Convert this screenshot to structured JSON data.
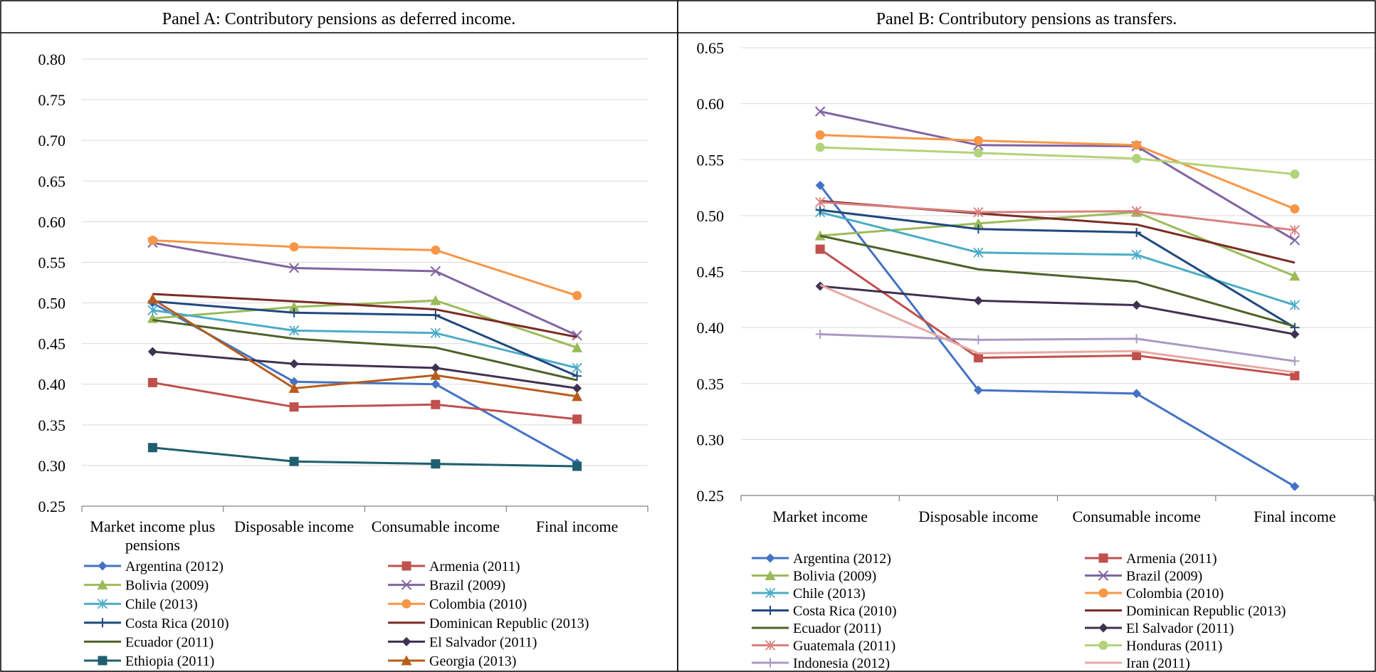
{
  "chart_data": [
    {
      "type": "line",
      "title": "Panel A: Contributory pensions as deferred income.",
      "categories": [
        "Market income plus pensions",
        "Disposable income",
        "Consumable income",
        "Final income"
      ],
      "ylim": [
        0.25,
        0.8
      ],
      "yticks": [
        "0.25",
        "0.30",
        "0.35",
        "0.40",
        "0.45",
        "0.50",
        "0.55",
        "0.60",
        "0.65",
        "0.70",
        "0.75",
        "0.80"
      ],
      "grid": true,
      "legend_position": "bottom",
      "series": [
        {
          "name": "Argentina (2012)",
          "color": "#4472C4",
          "marker": "diamond",
          "values": [
            0.5,
            0.403,
            0.4,
            0.303
          ]
        },
        {
          "name": "Armenia (2011)",
          "color": "#C0504D",
          "marker": "square",
          "values": [
            0.402,
            0.372,
            0.375,
            0.357
          ]
        },
        {
          "name": "Bolivia (2009)",
          "color": "#9BBB59",
          "marker": "triangle",
          "values": [
            0.481,
            0.495,
            0.503,
            0.445
          ]
        },
        {
          "name": "Brazil (2009)",
          "color": "#8064A2",
          "marker": "x",
          "values": [
            0.574,
            0.543,
            0.539,
            0.46
          ]
        },
        {
          "name": "Chile (2013)",
          "color": "#4BACC6",
          "marker": "asterisk",
          "values": [
            0.491,
            0.466,
            0.463,
            0.42
          ]
        },
        {
          "name": "Colombia (2010)",
          "color": "#F79646",
          "marker": "circle",
          "values": [
            0.577,
            0.569,
            0.565,
            0.509
          ]
        },
        {
          "name": "Costa Rica (2010)",
          "color": "#1F497D",
          "marker": "plus",
          "values": [
            0.502,
            0.488,
            0.485,
            0.41
          ]
        },
        {
          "name": "Dominican Republic (2013)",
          "color": "#7B2C26",
          "marker": "none",
          "values": [
            0.511,
            0.502,
            0.492,
            0.458
          ]
        },
        {
          "name": "Ecuador (2011)",
          "color": "#4F6228",
          "marker": "none",
          "values": [
            0.479,
            0.456,
            0.445,
            0.405
          ]
        },
        {
          "name": "El Salvador (2011)",
          "color": "#403151",
          "marker": "diamond",
          "values": [
            0.44,
            0.425,
            0.42,
            0.395
          ]
        },
        {
          "name": "Ethiopia (2011)",
          "color": "#1F5F6F",
          "marker": "square",
          "values": [
            0.322,
            0.305,
            0.302,
            0.299
          ]
        },
        {
          "name": "Georgia (2013)",
          "color": "#B85C1C",
          "marker": "triangle",
          "values": [
            0.505,
            0.395,
            0.411,
            0.385
          ]
        }
      ]
    },
    {
      "type": "line",
      "title": "Panel B: Contributory pensions as transfers.",
      "categories": [
        "Market income",
        "Disposable income",
        "Consumable income",
        "Final income"
      ],
      "ylim": [
        0.25,
        0.65
      ],
      "yticks": [
        "0.25",
        "0.30",
        "0.35",
        "0.40",
        "0.45",
        "0.50",
        "0.55",
        "0.60",
        "0.65"
      ],
      "grid": true,
      "legend_position": "bottom",
      "series": [
        {
          "name": "Argentina (2012)",
          "color": "#4472C4",
          "marker": "diamond",
          "values": [
            0.527,
            0.344,
            0.341,
            0.258
          ]
        },
        {
          "name": "Armenia (2011)",
          "color": "#C0504D",
          "marker": "square",
          "values": [
            0.47,
            0.373,
            0.375,
            0.357
          ]
        },
        {
          "name": "Bolivia (2009)",
          "color": "#9BBB59",
          "marker": "triangle",
          "values": [
            0.482,
            0.493,
            0.503,
            0.446
          ]
        },
        {
          "name": "Brazil (2009)",
          "color": "#8064A2",
          "marker": "x",
          "values": [
            0.593,
            0.563,
            0.562,
            0.478
          ]
        },
        {
          "name": "Chile (2013)",
          "color": "#4BACC6",
          "marker": "asterisk",
          "values": [
            0.503,
            0.467,
            0.465,
            0.42
          ]
        },
        {
          "name": "Colombia (2010)",
          "color": "#F79646",
          "marker": "circle",
          "values": [
            0.572,
            0.567,
            0.563,
            0.506
          ]
        },
        {
          "name": "Costa Rica (2010)",
          "color": "#1F497D",
          "marker": "plus",
          "values": [
            0.505,
            0.488,
            0.485,
            0.4
          ]
        },
        {
          "name": "Dominican Republic (2013)",
          "color": "#7B2C26",
          "marker": "none",
          "values": [
            0.513,
            0.502,
            0.492,
            0.458
          ]
        },
        {
          "name": "Ecuador (2011)",
          "color": "#4F6228",
          "marker": "none",
          "values": [
            0.482,
            0.452,
            0.441,
            0.401
          ]
        },
        {
          "name": "El Salvador (2011)",
          "color": "#403151",
          "marker": "diamond",
          "values": [
            0.437,
            0.424,
            0.42,
            0.394
          ]
        },
        {
          "name": "Guatemala (2011)",
          "color": "#D9807E",
          "marker": "asterisk",
          "values": [
            0.512,
            0.503,
            0.504,
            0.487
          ]
        },
        {
          "name": "Honduras (2011)",
          "color": "#B3D37A",
          "marker": "circle",
          "values": [
            0.561,
            0.556,
            0.551,
            0.537
          ]
        },
        {
          "name": "Indonesia (2012)",
          "color": "#A99BC4",
          "marker": "plus",
          "values": [
            0.394,
            0.389,
            0.39,
            0.37
          ]
        },
        {
          "name": "Iran (2011)",
          "color": "#E6A9A3",
          "marker": "none",
          "values": [
            0.438,
            0.377,
            0.379,
            0.36
          ]
        }
      ]
    }
  ]
}
